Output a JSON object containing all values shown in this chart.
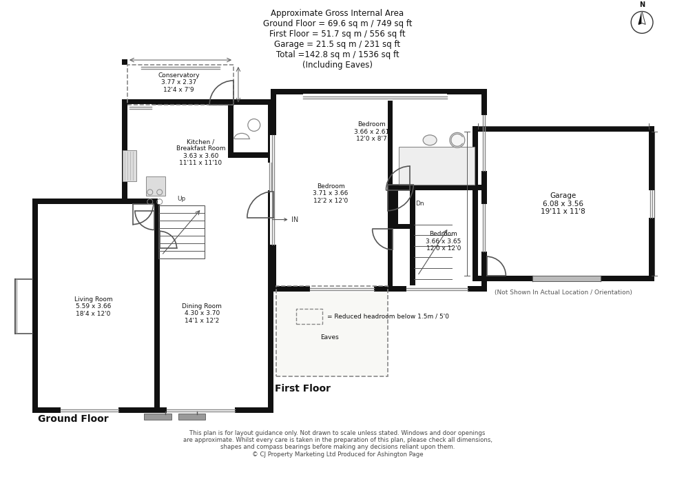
{
  "title_text": "Approximate Gross Internal Area\nGround Floor = 69.6 sq m / 749 sq ft\nFirst Floor = 51.7 sq m / 556 sq ft\nGarage = 21.5 sq m / 231 sq ft\nTotal =142.8 sq m / 1536 sq ft\n(Including Eaves)",
  "footer_text": "This plan is for layout guidance only. Not drawn to scale unless stated. Windows and door openings\nare approximate. Whilst every care is taken in the preparation of this plan, please check all dimensions,\nshapes and compass bearings before making any decisions reliant upon them.\n© CJ Property Marketing Ltd Produced for Ashington Page",
  "ground_floor_label": "Ground Floor",
  "first_floor_label": "First Floor",
  "legend_text": "= Reduced headroom below 1.5m / 5'0",
  "bg_color": "#ffffff",
  "wall_color": "#111111",
  "room_fill": "#ffffff",
  "rooms": {
    "conservatory": "Conservatory\n3.77 x 2.37\n12'4 x 7'9",
    "kitchen": "Kitchen /\nBreakfast Room\n3.63 x 3.60\n11'11 x 11'10",
    "living": "Living Room\n5.59 x 3.66\n18'4 x 12'0",
    "dining": "Dining Room\n4.30 x 3.70\n14'1 x 12'2",
    "bed1": "Bedroom\n3.66 x 2.61\n12'0 x 8'7",
    "bed2": "Bedroom\n3.71 x 3.66\n12'2 x 12'0",
    "bed3": "Bedroom\n3.66 x 3.65\n12'0 x 12'0",
    "eaves": "Eaves",
    "garage": "Garage\n6.08 x 3.56\n19'11 x 11'8"
  }
}
